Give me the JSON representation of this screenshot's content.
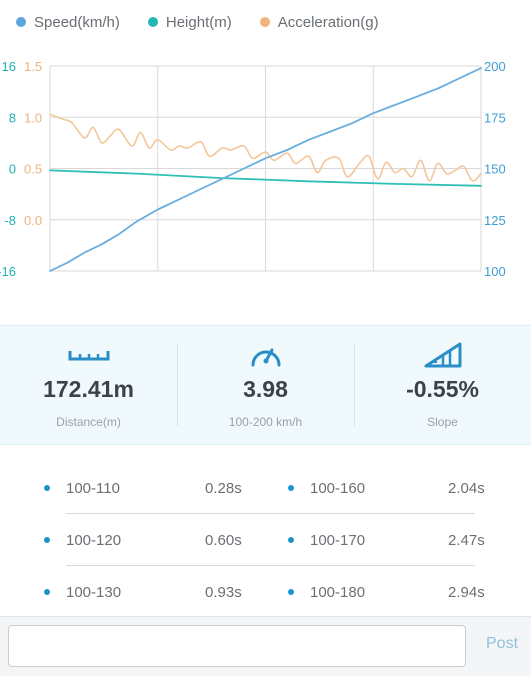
{
  "legend": {
    "items": [
      {
        "label": "Speed(km/h)",
        "color": "#5aa6dc"
      },
      {
        "label": "Height(m)",
        "color": "#22b7b5"
      },
      {
        "label": "Acceleration(g)",
        "color": "#f2b27b"
      }
    ]
  },
  "chart_data": {
    "type": "line",
    "grid": true,
    "axes": {
      "left_height_ticks": [
        "16",
        "8",
        "0",
        "-8",
        "-16"
      ],
      "left_accel_ticks": [
        "1.5",
        "1.0",
        "0.5",
        "0.0"
      ],
      "right_speed_ticks": [
        "200",
        "175",
        "150",
        "125",
        "100"
      ]
    },
    "series": [
      {
        "name": "Speed(km/h)",
        "axis": "right",
        "color": "#6aaede",
        "t": [
          0,
          0.04,
          0.08,
          0.12,
          0.16,
          0.2,
          0.25,
          0.3,
          0.35,
          0.4,
          0.45,
          0.5,
          0.55,
          0.6,
          0.65,
          0.7,
          0.75,
          0.8,
          0.85,
          0.9,
          0.95,
          1.0
        ],
        "values": [
          100,
          104,
          109,
          113,
          118,
          124,
          130,
          135,
          140,
          145,
          150,
          155,
          159,
          164,
          168,
          172,
          177,
          181,
          185,
          189,
          194,
          199
        ]
      },
      {
        "name": "Height(m)",
        "axis": "left",
        "color": "#2fbfb7",
        "t": [
          0,
          0.2,
          0.4,
          0.6,
          0.8,
          1.0
        ],
        "values": [
          -0.3,
          -0.8,
          -1.5,
          -2.0,
          -2.4,
          -2.7
        ]
      },
      {
        "name": "Acceleration(g)",
        "axis": "left-accel",
        "color": "#f3c79a",
        "t": [
          0,
          0.03,
          0.05,
          0.08,
          0.1,
          0.12,
          0.14,
          0.16,
          0.19,
          0.21,
          0.23,
          0.25,
          0.28,
          0.3,
          0.32,
          0.35,
          0.37,
          0.4,
          0.42,
          0.45,
          0.47,
          0.5,
          0.52,
          0.55,
          0.57,
          0.6,
          0.62,
          0.64,
          0.67,
          0.69,
          0.72,
          0.74,
          0.76,
          0.78,
          0.8,
          0.82,
          0.84,
          0.86,
          0.88,
          0.9,
          0.92,
          0.94,
          0.96,
          0.98,
          1.0
        ],
        "values": [
          1.03,
          0.98,
          0.95,
          0.8,
          0.9,
          0.75,
          0.82,
          0.88,
          0.72,
          0.85,
          0.7,
          0.78,
          0.68,
          0.72,
          0.7,
          0.76,
          0.62,
          0.7,
          0.68,
          0.72,
          0.6,
          0.66,
          0.58,
          0.65,
          0.55,
          0.62,
          0.46,
          0.58,
          0.6,
          0.42,
          0.56,
          0.62,
          0.4,
          0.56,
          0.46,
          0.5,
          0.42,
          0.58,
          0.38,
          0.55,
          0.45,
          0.48,
          0.52,
          0.38,
          0.45
        ]
      }
    ]
  },
  "stats": [
    {
      "icon": "ruler-icon",
      "value": "172.41m",
      "label": "Distance(m)"
    },
    {
      "icon": "speedometer-icon",
      "value": "3.98",
      "label": "100-200 km/h"
    },
    {
      "icon": "slope-icon",
      "value": "-0.55%",
      "label": "Slope"
    }
  ],
  "times": [
    {
      "left": {
        "range": "100-110",
        "time": "0.28s"
      },
      "right": {
        "range": "100-160",
        "time": "2.04s"
      }
    },
    {
      "left": {
        "range": "100-120",
        "time": "0.60s"
      },
      "right": {
        "range": "100-170",
        "time": "2.47s"
      }
    },
    {
      "left": {
        "range": "100-130",
        "time": "0.93s"
      },
      "right": {
        "range": "100-180",
        "time": "2.94s"
      }
    }
  ],
  "comment": {
    "input_value": "",
    "post_label": "Post"
  },
  "colors": {
    "accent": "#1e93c9",
    "stat_icon": "#2a8ec6"
  }
}
